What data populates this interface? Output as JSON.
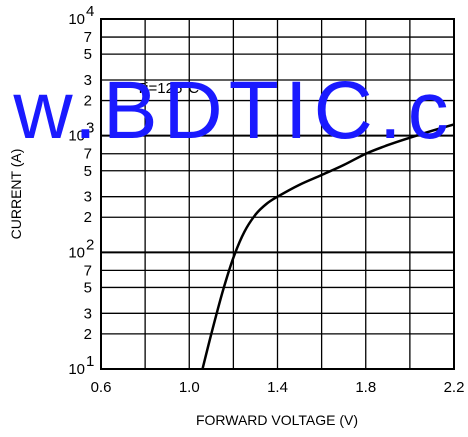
{
  "chart_data": {
    "type": "line",
    "xlabel": "FORWARD VOLTAGE (V)",
    "ylabel": "CURRENT (A)",
    "x_ticks": [
      "0.6",
      "1.0",
      "1.4",
      "1.8",
      "2.2"
    ],
    "xlim": [
      0.6,
      2.2
    ],
    "y_scale": "log",
    "ylim": [
      10,
      10000
    ],
    "y_ticks": [
      {
        "value": 10,
        "base": "10",
        "exp": "1"
      },
      {
        "value": 20,
        "label": "2"
      },
      {
        "value": 30,
        "label": "3"
      },
      {
        "value": 50,
        "label": "5"
      },
      {
        "value": 70,
        "label": "7"
      },
      {
        "value": 100,
        "base": "10",
        "exp": "2"
      },
      {
        "value": 200,
        "label": "2"
      },
      {
        "value": 300,
        "label": "3"
      },
      {
        "value": 500,
        "label": "5"
      },
      {
        "value": 700,
        "label": "7"
      },
      {
        "value": 1000,
        "base": "10",
        "exp": "3"
      },
      {
        "value": 2000,
        "label": "2"
      },
      {
        "value": 3000,
        "label": "3"
      },
      {
        "value": 5000,
        "label": "5"
      },
      {
        "value": 7000,
        "label": "7"
      },
      {
        "value": 10000,
        "base": "10",
        "exp": "4"
      }
    ],
    "grid": true,
    "annotation": "Tj=125°C",
    "series": [
      {
        "color": "#000000",
        "points": [
          {
            "x": 1.06,
            "y": 10
          },
          {
            "x": 1.1,
            "y": 20
          },
          {
            "x": 1.15,
            "y": 45
          },
          {
            "x": 1.2,
            "y": 90
          },
          {
            "x": 1.25,
            "y": 150
          },
          {
            "x": 1.3,
            "y": 210
          },
          {
            "x": 1.35,
            "y": 260
          },
          {
            "x": 1.4,
            "y": 300
          },
          {
            "x": 1.5,
            "y": 380
          },
          {
            "x": 1.6,
            "y": 460
          },
          {
            "x": 1.7,
            "y": 560
          },
          {
            "x": 1.8,
            "y": 700
          },
          {
            "x": 1.9,
            "y": 830
          },
          {
            "x": 2.0,
            "y": 960
          },
          {
            "x": 2.1,
            "y": 1100
          },
          {
            "x": 2.2,
            "y": 1250
          }
        ]
      }
    ]
  },
  "watermark": "w.BDTIC.c"
}
